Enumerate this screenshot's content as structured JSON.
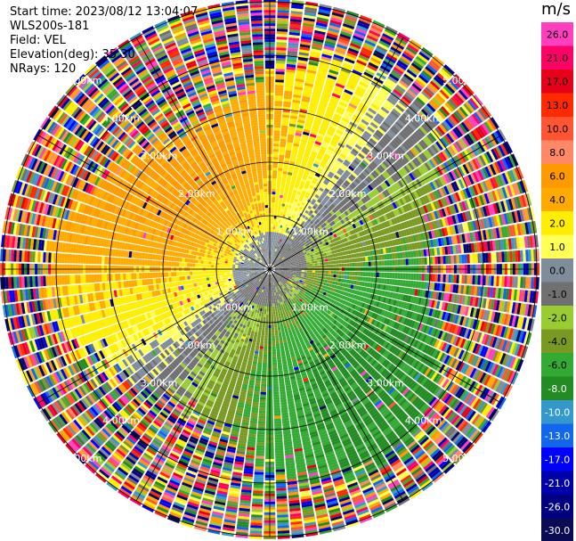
{
  "info": {
    "start_time": "Start time: 2023/08/12 13:04:07",
    "instrument": "WLS200s-181",
    "field": "Field: VEL",
    "elevation": "Elevation(deg): 35.30",
    "nrays": "NRays: 120"
  },
  "colorbar": {
    "unit": "m/s",
    "ticks": [
      "26.0",
      "21.0",
      "17.0",
      "13.0",
      "10.0",
      "8.0",
      "6.0",
      "4.0",
      "2.0",
      "1.0",
      "0.0",
      "-1.0",
      "-2.0",
      "-4.0",
      "-6.0",
      "-8.0",
      "-10.0",
      "-13.0",
      "-17.0",
      "-21.0",
      "-26.0",
      "-30.0"
    ],
    "colors": [
      "#ff3fbf",
      "#ff0066",
      "#e6001a",
      "#ff2a00",
      "#ff5533",
      "#ff8866",
      "#ff9900",
      "#ffaa00",
      "#ffee00",
      "#ffff55",
      "#7f8c99",
      "#707070",
      "#99cc33",
      "#7a9922",
      "#33aa33",
      "#228b22",
      "#3399cc",
      "#1166ee",
      "#0000ff",
      "#0000aa",
      "#000080",
      "#0b0b55"
    ]
  },
  "chart_data": {
    "type": "ppi",
    "field": "VEL",
    "units": "m/s",
    "range_ring_labels": [
      "1.00km",
      "2.00km",
      "3.00km",
      "4.00km",
      "5.00km"
    ],
    "colorbar_range": [
      -30,
      26
    ]
  }
}
